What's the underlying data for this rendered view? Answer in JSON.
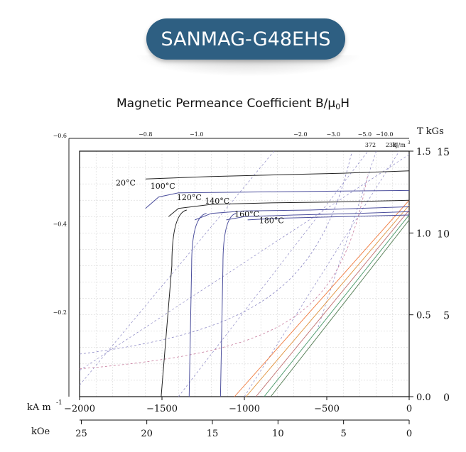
{
  "banner": {
    "title": "SANMAG-G48EHS"
  },
  "chart_data": {
    "type": "line",
    "title": "Magnetic Permeance Coefficient B/μ0H",
    "title_main": "Magnetic Permeance Coefficient B/μ",
    "title_sub": "0",
    "title_end": "H",
    "xlabel": "kA m",
    "xlabel_exp": "-1",
    "xlabel2": "kOe",
    "ylabel_right": "T  kGs",
    "permeance_unit": "kJ/m",
    "permeance_unit_exp": "3",
    "xlim": [
      -2000,
      0
    ],
    "ylim": [
      0,
      1.5
    ],
    "x_ticks": [
      {
        "value": -2000,
        "label": "−2000"
      },
      {
        "value": -1500,
        "label": "−1500"
      },
      {
        "value": -1000,
        "label": "−1000"
      },
      {
        "value": -500,
        "label": "−500"
      },
      {
        "value": 0,
        "label": "0"
      }
    ],
    "koe_ticks": [
      {
        "value": -1989,
        "label": "25"
      },
      {
        "value": -1592,
        "label": "20"
      },
      {
        "value": -1194,
        "label": "15"
      },
      {
        "value": -796,
        "label": "10"
      },
      {
        "value": -398,
        "label": "5"
      },
      {
        "value": 0,
        "label": "0"
      }
    ],
    "t_ticks": [
      {
        "value": 1.5,
        "label": "1.5"
      },
      {
        "value": 1.0,
        "label": "1.0"
      },
      {
        "value": 0.5,
        "label": "0.5"
      },
      {
        "value": 0.0,
        "label": "0.0"
      }
    ],
    "kgs_ticks": [
      {
        "value": 1.5,
        "label": "15"
      },
      {
        "value": 1.0,
        "label": "10"
      },
      {
        "value": 0.5,
        "label": "5"
      },
      {
        "value": 0.0,
        "label": "0"
      }
    ],
    "left_labels": [
      {
        "value": 1.6,
        "label": "−0.6"
      },
      {
        "value": 1.06,
        "label": "−0.4"
      },
      {
        "value": 0.52,
        "label": "−0.2"
      }
    ],
    "top_labels": [
      {
        "value": -1600,
        "label": "−0.8"
      },
      {
        "value": -1290,
        "label": "−1.0"
      },
      {
        "value": -660,
        "label": "−2.0"
      },
      {
        "value": -460,
        "label": "−3.0"
      },
      {
        "value": -270,
        "label": "−5.0"
      },
      {
        "value": -150,
        "label": "−10.0"
      }
    ],
    "energy_labels": [
      {
        "value": -235,
        "label": "372"
      },
      {
        "value": -110,
        "label": "238"
      }
    ],
    "series": [
      {
        "name": "20°C",
        "color": "#222222",
        "bhigh": [
          [
            -1600,
            1.33
          ],
          [
            -1200,
            1.345
          ],
          [
            -800,
            1.355
          ],
          [
            -400,
            1.365
          ],
          [
            0,
            1.38
          ]
        ],
        "knee": -1560,
        "label_at": [
          -1780,
          1.29
        ]
      },
      {
        "name": "100°C",
        "color": "#4b4e9c",
        "bhigh": [
          [
            -1600,
            1.15
          ],
          [
            -1520,
            1.22
          ],
          [
            -1400,
            1.245
          ],
          [
            -1000,
            1.25
          ],
          [
            -500,
            1.255
          ],
          [
            0,
            1.26
          ]
        ],
        "label_at": [
          -1570,
          1.27
        ]
      },
      {
        "name": "120°C",
        "color": "#222222",
        "bhigh": [
          [
            -1460,
            1.1
          ],
          [
            -1400,
            1.15
          ],
          [
            -1200,
            1.175
          ],
          [
            -800,
            1.185
          ],
          [
            -400,
            1.19
          ],
          [
            0,
            1.2
          ]
        ],
        "label_at": [
          -1410,
          1.2
        ]
      },
      {
        "name": "140°C",
        "color": "#4b4e9c",
        "bhigh": [
          [
            -1300,
            1.08
          ],
          [
            -1200,
            1.12
          ],
          [
            -1000,
            1.135
          ],
          [
            -600,
            1.14
          ],
          [
            0,
            1.16
          ]
        ],
        "label_at": [
          -1240,
          1.18
        ]
      },
      {
        "name": "160°C",
        "color": "#4b4e9c",
        "bhigh": [
          [
            -1110,
            1.08
          ],
          [
            -1000,
            1.1
          ],
          [
            -700,
            1.11
          ],
          [
            -300,
            1.12
          ],
          [
            0,
            1.13
          ]
        ],
        "label_at": [
          -1060,
          1.1
        ]
      },
      {
        "name": "180°C",
        "color": "#4b4e9c",
        "bhigh": [
          [
            -980,
            1.08
          ],
          [
            -800,
            1.09
          ],
          [
            -400,
            1.1
          ],
          [
            0,
            1.11
          ]
        ],
        "label_at": [
          -910,
          1.06
        ]
      }
    ]
  }
}
